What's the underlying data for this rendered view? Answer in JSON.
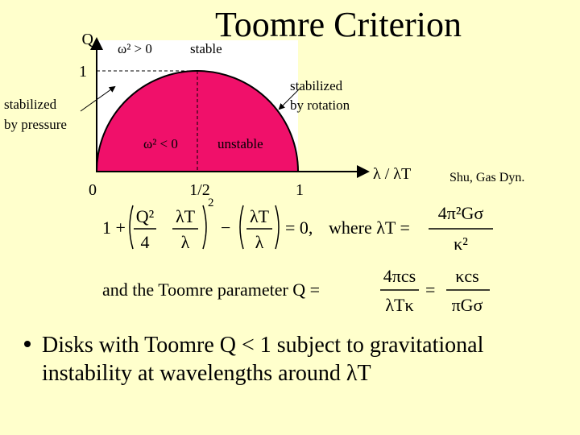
{
  "title": "Toomre Criterion",
  "diagram": {
    "y_axis_label": "Q",
    "y_tick": "1",
    "x_ticks": [
      "0",
      "1/2",
      "1"
    ],
    "x_axis_label": "λ / λT",
    "stable_condition": "ω² > 0",
    "stable": "stable",
    "unstable_condition": "ω² < 0",
    "unstable": "unstable",
    "pressure_label": [
      "stabilized",
      "by pressure"
    ],
    "rotation_label": [
      "stabilized",
      "by rotation"
    ]
  },
  "citation": "Shu, Gas Dyn.",
  "dispersion_relation": {
    "one": "1 +",
    "frac1_num": "Q²",
    "frac1_den": "4",
    "frac2_num": "λT",
    "frac2_den": "λ",
    "exponent": "2",
    "minus": "−",
    "frac3_num": "λT",
    "frac3_den": "λ",
    "equals": "= 0,",
    "where": "where λT =",
    "frac4_num": "4π²Gσ",
    "frac4_den": "κ²"
  },
  "toomre_parameter": {
    "lead": "and the Toomre parameter Q =",
    "frac1_num": "4πcs",
    "frac1_den": "λTκ",
    "equals": "=",
    "frac2_num": "κcs",
    "frac2_den": "πGσ"
  },
  "bullet": [
    "Disks with Toomre Q < 1 subject to gravitational",
    "instability at wavelengths around λT"
  ]
}
